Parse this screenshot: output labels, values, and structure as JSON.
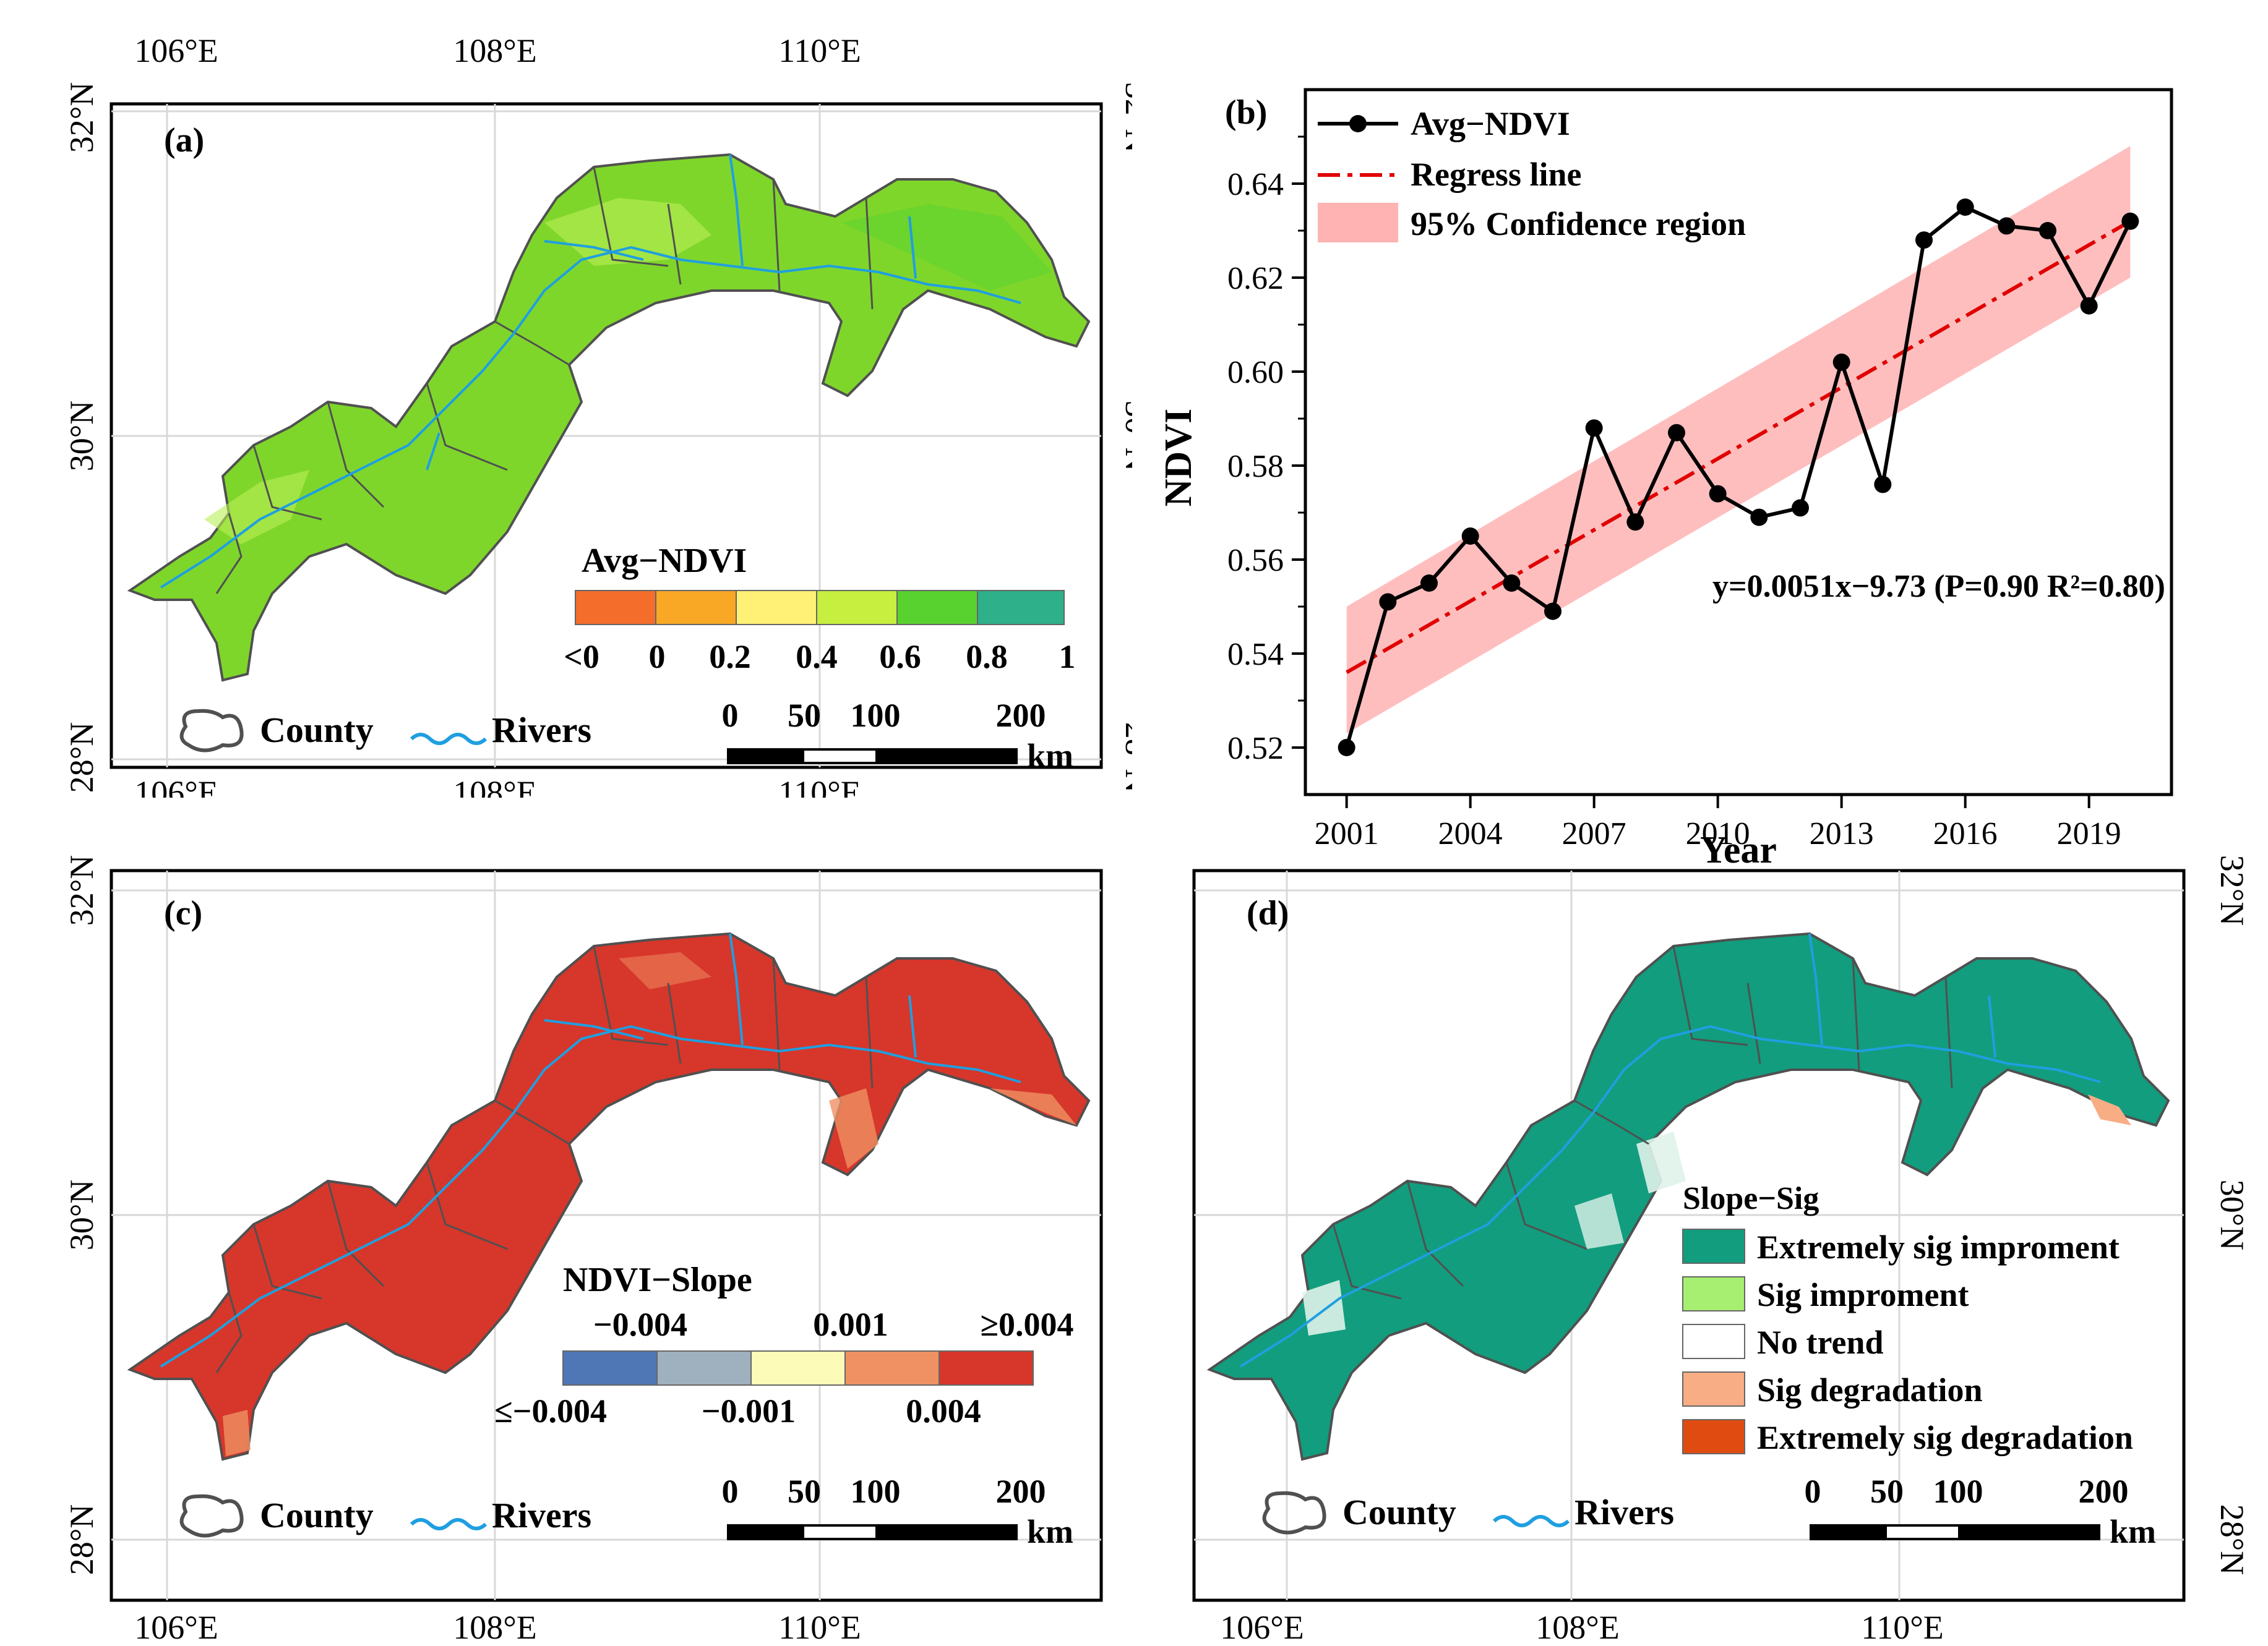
{
  "panels": {
    "a": {
      "label": "(a)",
      "legend_title": "Avg−NDVI",
      "legend_classes": [
        {
          "label": "<0",
          "color": "#f46d2a"
        },
        {
          "label": "0",
          "color": "#f9a825"
        },
        {
          "label": "0.2",
          "color": "#fff176"
        },
        {
          "label": "0.4",
          "color": "#c6ef3f"
        },
        {
          "label": "0.6",
          "color": "#58d22f"
        },
        {
          "label": "0.8",
          "color": "#2eb08a"
        },
        {
          "label": "1",
          "color": ""
        }
      ],
      "fill_color": "#7fd62b",
      "accent_color": "#b9ef55"
    },
    "c": {
      "label": "(c)",
      "legend_title": "NDVI−Slope",
      "legend_top_labels": [
        "−0.004",
        "0.001",
        "≥0.004"
      ],
      "legend_bottom_labels": [
        "≤−0.004",
        "−0.001",
        "0.004"
      ],
      "legend_colors": [
        "#4f77b5",
        "#9fb0bf",
        "#fdfbb8",
        "#ef9163",
        "#d7362b"
      ],
      "fill_color": "#d7362b",
      "accent_color": "#ef9163"
    },
    "d": {
      "label": "(d)",
      "legend_title": "Slope−Sig",
      "legend_items": [
        {
          "label": "Extremely sig improment",
          "color": "#129d7e"
        },
        {
          "label": "Sig improment",
          "color": "#a7ef71"
        },
        {
          "label": "No trend",
          "color": "#ffffff"
        },
        {
          "label": "Sig degradation",
          "color": "#f8ad85"
        },
        {
          "label": "Extremely sig degradation",
          "color": "#e04b12"
        }
      ],
      "fill_color": "#129d7e",
      "accent_color": "#dff3ea"
    }
  },
  "map_common": {
    "lon_labels": [
      "106°E",
      "108°E",
      "110°E"
    ],
    "lat_labels": [
      "32°N",
      "30°N",
      "28°N"
    ],
    "county_label": "County",
    "rivers_label": "Rivers",
    "scale_labels": [
      "0",
      "50",
      "100",
      "200"
    ],
    "scale_unit": "km",
    "county_color": "#505050",
    "river_color": "#1f9fe0"
  },
  "chart_data": {
    "type": "line",
    "panel_label": "(b)",
    "title": "",
    "xlabel": "Year",
    "ylabel": "NDVI",
    "x": [
      2001,
      2002,
      2003,
      2004,
      2005,
      2006,
      2007,
      2008,
      2009,
      2010,
      2011,
      2012,
      2013,
      2014,
      2015,
      2016,
      2017,
      2018,
      2019,
      2020
    ],
    "series": [
      {
        "name": "Avg−NDVI",
        "values": [
          0.52,
          0.551,
          0.555,
          0.565,
          0.555,
          0.549,
          0.588,
          0.568,
          0.587,
          0.574,
          0.569,
          0.571,
          0.602,
          0.576,
          0.628,
          0.635,
          0.631,
          0.63,
          0.614,
          0.632
        ]
      }
    ],
    "regression": {
      "name": "Regress line",
      "start": [
        2001,
        0.536
      ],
      "end": [
        2020,
        0.632
      ]
    },
    "confidence_band": {
      "name": "95% Confidence region",
      "lower_start": 0.523,
      "lower_end": 0.62,
      "upper_start": 0.55,
      "upper_end": 0.648
    },
    "equation": "y=0.0051x−9.73 (P=0.90 R²=0.80)",
    "xticks": [
      "2001",
      "2004",
      "2007",
      "2010",
      "2013",
      "2016",
      "2019"
    ],
    "yticks": [
      "0.52",
      "0.54",
      "0.56",
      "0.58",
      "0.60",
      "0.62",
      "0.64"
    ],
    "xlim": [
      2000,
      2021
    ],
    "ylim": [
      0.51,
      0.66
    ],
    "legend_position": "top-left",
    "line_color": "#000000",
    "regression_color": "#e00000",
    "band_color": "#ffb3b3"
  }
}
